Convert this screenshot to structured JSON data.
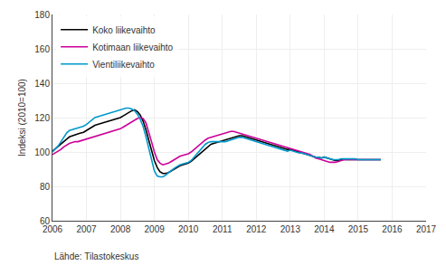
{
  "chart_data": {
    "type": "line",
    "ylabel": "Indeksi (2010=100)",
    "annotations": [
      "Lähde: Tilastokeskus"
    ],
    "x": [
      2006.0,
      2006.0833333333,
      2006.1666666667,
      2006.25,
      2006.3333333333,
      2006.4166666667,
      2006.5,
      2006.5833333333,
      2006.6666666667,
      2006.75,
      2006.8333333333,
      2006.9166666667,
      2007.0,
      2007.0833333333,
      2007.1666666667,
      2007.25,
      2007.3333333333,
      2007.4166666667,
      2007.5,
      2007.5833333333,
      2007.6666666667,
      2007.75,
      2007.8333333333,
      2007.9166666667,
      2008.0,
      2008.0833333333,
      2008.1666666667,
      2008.25,
      2008.3333333333,
      2008.4166666667,
      2008.5,
      2008.5833333333,
      2008.6666666667,
      2008.75,
      2008.8333333333,
      2008.9166666667,
      2009.0,
      2009.0833333333,
      2009.1666666667,
      2009.25,
      2009.3333333333,
      2009.4166666667,
      2009.5,
      2009.5833333333,
      2009.6666666667,
      2009.75,
      2009.8333333333,
      2009.9166666667,
      2010.0,
      2010.0833333333,
      2010.1666666667,
      2010.25,
      2010.3333333333,
      2010.4166666667,
      2010.5,
      2010.5833333333,
      2010.6666666667,
      2010.75,
      2010.8333333333,
      2010.9166666667,
      2011.0,
      2011.0833333333,
      2011.1666666667,
      2011.25,
      2011.3333333333,
      2011.4166666667,
      2011.5,
      2011.5833333333,
      2011.6666666667,
      2011.75,
      2011.8333333333,
      2011.9166666667,
      2012.0,
      2012.0833333333,
      2012.1666666667,
      2012.25,
      2012.3333333333,
      2012.4166666667,
      2012.5,
      2012.5833333333,
      2012.6666666667,
      2012.75,
      2012.8333333333,
      2012.9166666667,
      2013.0,
      2013.0833333333,
      2013.1666666667,
      2013.25,
      2013.3333333333,
      2013.4166666667,
      2013.5,
      2013.5833333333,
      2013.6666666667,
      2013.75,
      2013.8333333333,
      2013.9166666667,
      2014.0,
      2014.0833333333,
      2014.1666666667,
      2014.25,
      2014.3333333333,
      2014.4166666667,
      2014.5,
      2014.5833333333,
      2014.6666666667,
      2014.75,
      2014.8333333333,
      2014.9166666667,
      2015.0,
      2015.0833333333,
      2015.1666666667,
      2015.25,
      2015.3333333333,
      2015.4166666667,
      2015.5,
      2015.5833333333,
      2015.6666666667
    ],
    "series": [
      {
        "name": "Koko liikevaihto",
        "color": "#000000",
        "values": [
          100.5,
          101.8,
          103.2,
          104.6,
          106.0,
          107.4,
          108.8,
          109.5,
          110.0,
          110.5,
          111.0,
          111.5,
          112.5,
          113.5,
          114.5,
          115.5,
          116.0,
          116.5,
          117.0,
          117.5,
          118.0,
          118.5,
          119.0,
          119.5,
          120.0,
          121.0,
          122.0,
          123.0,
          124.0,
          124.5,
          123.5,
          121.5,
          118.0,
          113.0,
          107.0,
          101.0,
          95.0,
          91.0,
          88.5,
          87.5,
          87.5,
          88.0,
          89.0,
          90.0,
          91.0,
          92.0,
          92.5,
          93.0,
          93.5,
          94.5,
          96.0,
          97.5,
          99.0,
          100.5,
          102.0,
          103.5,
          104.5,
          105.0,
          105.5,
          106.0,
          106.5,
          107.0,
          107.5,
          108.0,
          108.5,
          109.0,
          109.5,
          109.5,
          109.0,
          108.5,
          108.0,
          107.5,
          107.0,
          106.5,
          106.0,
          105.5,
          105.0,
          104.5,
          104.0,
          103.5,
          103.0,
          102.5,
          102.0,
          101.5,
          101.5,
          101.0,
          100.5,
          100.0,
          99.5,
          99.0,
          98.5,
          98.0,
          97.5,
          97.0,
          97.0,
          96.5,
          97.0,
          96.5,
          96.0,
          95.5,
          95.0,
          95.0,
          95.5,
          95.5,
          95.5,
          95.5,
          95.5,
          95.5,
          95.5,
          95.5,
          95.5,
          95.5,
          95.5,
          95.5,
          95.5,
          95.5,
          95.5
        ]
      },
      {
        "name": "Kotimaan liikevaihto",
        "color": "#cc0099",
        "values": [
          98.5,
          99.5,
          100.5,
          101.5,
          103.0,
          104.0,
          105.0,
          105.5,
          106.0,
          106.0,
          106.5,
          107.0,
          107.5,
          108.0,
          108.5,
          109.0,
          109.5,
          110.0,
          110.5,
          111.0,
          111.5,
          112.0,
          112.5,
          113.0,
          113.5,
          114.5,
          115.5,
          116.5,
          117.5,
          118.5,
          119.5,
          120.0,
          119.5,
          117.0,
          112.0,
          106.0,
          100.0,
          95.5,
          93.5,
          92.5,
          93.0,
          93.5,
          94.5,
          95.5,
          96.5,
          97.5,
          98.0,
          98.5,
          99.0,
          100.0,
          101.5,
          103.0,
          104.5,
          106.0,
          107.0,
          108.0,
          108.5,
          109.0,
          109.5,
          110.0,
          110.5,
          111.0,
          111.5,
          112.0,
          112.0,
          111.5,
          111.0,
          110.5,
          110.0,
          109.5,
          109.0,
          108.5,
          108.0,
          107.5,
          107.0,
          106.5,
          106.0,
          105.5,
          105.0,
          104.5,
          104.0,
          103.5,
          103.0,
          102.5,
          102.0,
          101.5,
          101.0,
          100.5,
          100.0,
          99.5,
          99.0,
          98.5,
          97.5,
          96.5,
          96.0,
          95.5,
          95.0,
          94.5,
          94.0,
          94.0,
          94.0,
          94.5,
          95.0,
          95.5,
          95.5,
          95.5,
          95.5,
          95.5,
          95.5,
          95.5,
          95.5,
          95.5,
          95.5,
          95.5,
          95.5,
          95.5,
          95.5
        ]
      },
      {
        "name": "Vientiliikevaihto",
        "color": "#0099cc",
        "values": [
          100.0,
          101.5,
          103.5,
          106.0,
          108.5,
          111.0,
          112.5,
          113.0,
          113.5,
          114.0,
          114.5,
          115.0,
          116.0,
          117.5,
          119.0,
          120.0,
          120.5,
          121.0,
          121.5,
          122.0,
          122.5,
          123.0,
          123.5,
          124.0,
          124.5,
          125.0,
          125.5,
          125.5,
          125.0,
          124.0,
          122.0,
          119.0,
          115.0,
          109.0,
          102.0,
          95.0,
          89.0,
          86.0,
          85.5,
          85.5,
          86.5,
          88.0,
          89.5,
          90.5,
          91.5,
          92.5,
          93.0,
          93.5,
          94.0,
          95.0,
          97.0,
          99.0,
          101.0,
          103.0,
          104.5,
          105.5,
          106.0,
          106.0,
          106.0,
          106.0,
          106.0,
          106.0,
          106.5,
          107.0,
          107.5,
          108.0,
          108.5,
          108.5,
          108.0,
          107.5,
          107.0,
          106.5,
          106.0,
          105.5,
          105.0,
          104.5,
          104.0,
          103.5,
          103.0,
          102.5,
          102.0,
          101.5,
          101.0,
          100.5,
          101.0,
          100.5,
          100.0,
          99.5,
          99.5,
          99.0,
          98.5,
          98.0,
          97.5,
          97.0,
          97.0,
          96.5,
          97.0,
          96.5,
          96.0,
          95.5,
          95.5,
          95.5,
          96.0,
          96.0,
          96.0,
          96.0,
          96.0,
          96.0,
          95.5,
          95.5,
          95.5,
          95.5,
          95.5,
          95.5,
          95.5,
          95.5,
          95.5
        ]
      }
    ],
    "xlim": [
      2006.0,
      2017.0
    ],
    "ylim": [
      60,
      180
    ],
    "xticks": [
      2006,
      2007,
      2008,
      2009,
      2010,
      2011,
      2012,
      2013,
      2014,
      2015,
      2016,
      2017
    ],
    "yticks": [
      60,
      80,
      100,
      120,
      140,
      160,
      180
    ],
    "grid": true,
    "legend": "upper left"
  }
}
